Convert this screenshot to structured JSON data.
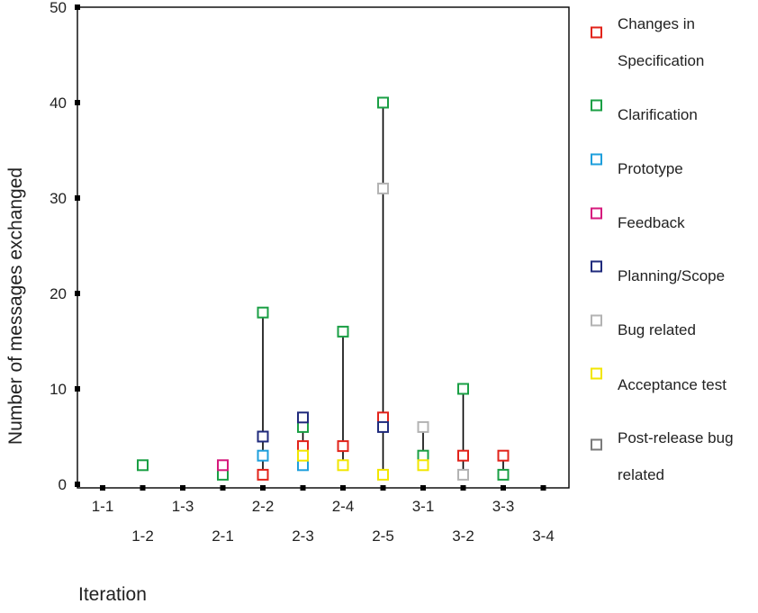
{
  "chart_data": {
    "type": "scatter",
    "title": "",
    "xlabel": "Iteration",
    "ylabel": "Number of messages exchanged",
    "ylim": [
      0,
      50
    ],
    "yticks": [
      0,
      10,
      20,
      30,
      40,
      50
    ],
    "grid": false,
    "legend_position": "right",
    "categories": [
      "1-1",
      "1-2",
      "1-3",
      "2-1",
      "2-2",
      "2-3",
      "2-4",
      "2-5",
      "3-1",
      "3-2",
      "3-3",
      "3-4"
    ],
    "series": [
      {
        "name": "Changes in Specification",
        "color": "#e2231a",
        "values": [
          null,
          null,
          null,
          null,
          1,
          4,
          4,
          7,
          null,
          3,
          3,
          null
        ]
      },
      {
        "name": "Clarification",
        "color": "#1a9f44",
        "values": [
          null,
          2,
          null,
          1,
          18,
          6,
          16,
          40,
          3,
          10,
          1,
          null
        ]
      },
      {
        "name": "Prototype",
        "color": "#1e9fdc",
        "values": [
          null,
          null,
          null,
          null,
          3,
          2,
          null,
          null,
          null,
          null,
          null,
          null
        ]
      },
      {
        "name": "Feedback",
        "color": "#d6197c",
        "values": [
          null,
          null,
          null,
          2,
          null,
          null,
          null,
          null,
          null,
          null,
          null,
          null
        ]
      },
      {
        "name": "Planning/Scope",
        "color": "#1f2a7c",
        "values": [
          null,
          null,
          null,
          null,
          5,
          7,
          null,
          6,
          null,
          null,
          null,
          null
        ]
      },
      {
        "name": "Bug related",
        "color": "#b3b3b3",
        "values": [
          null,
          null,
          null,
          null,
          null,
          null,
          null,
          31,
          6,
          1,
          null,
          null
        ]
      },
      {
        "name": "Acceptance test",
        "color": "#f2e600",
        "values": [
          null,
          null,
          null,
          null,
          null,
          3,
          2,
          1,
          2,
          null,
          null,
          null
        ]
      },
      {
        "name": "Post-release bug related",
        "color": "#7a7a7a",
        "values": [
          null,
          null,
          null,
          null,
          null,
          null,
          null,
          null,
          null,
          null,
          null,
          null
        ]
      }
    ]
  },
  "legend": {
    "items": [
      {
        "lines": [
          "Changes in",
          "Specification"
        ]
      },
      {
        "lines": [
          "Clarification"
        ]
      },
      {
        "lines": [
          "Prototype"
        ]
      },
      {
        "lines": [
          "Feedback"
        ]
      },
      {
        "lines": [
          "Planning/Scope"
        ]
      },
      {
        "lines": [
          "Bug related"
        ]
      },
      {
        "lines": [
          "Acceptance test"
        ]
      },
      {
        "lines": [
          "Post-release bug",
          "related"
        ]
      }
    ]
  }
}
